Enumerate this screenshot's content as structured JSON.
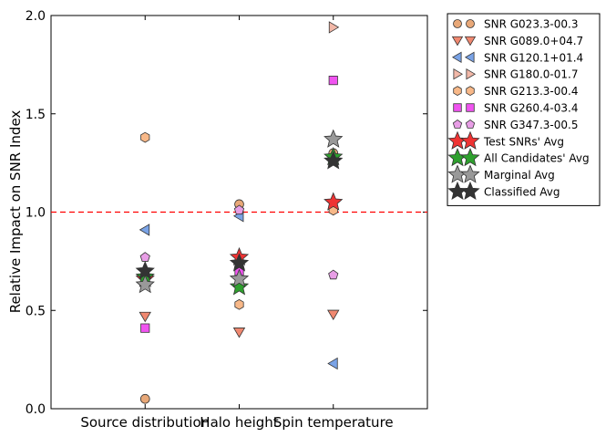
{
  "chart_data": {
    "type": "scatter",
    "title": "",
    "xlabel": "",
    "ylabel": "Relative Impact on SNR Index",
    "categories": [
      "Source distribution",
      "Halo height",
      "Spin temperature"
    ],
    "ylim": [
      0.0,
      2.0
    ],
    "yticks": [
      "0.0",
      "0.5",
      "1.0",
      "1.5",
      "2.0"
    ],
    "reference_line": {
      "y": 1.0,
      "color": "#ff0000",
      "style": "dashed"
    },
    "legend_position": "outside-right",
    "series": [
      {
        "name": "SNR G023.3-00.3",
        "marker": "circle",
        "color": "#e8a878",
        "values": [
          0.05,
          1.04,
          1.3
        ]
      },
      {
        "name": "SNR G089.0+04.7",
        "marker": "triangle-down",
        "color": "#f08870",
        "values": [
          0.47,
          0.39,
          0.48
        ]
      },
      {
        "name": "SNR G120.1+01.4",
        "marker": "triangle-left",
        "color": "#7aa3e6",
        "values": [
          0.91,
          0.98,
          0.23
        ]
      },
      {
        "name": "SNR G180.0-01.7",
        "marker": "triangle-right",
        "color": "#f2b8a8",
        "values": [
          0.66,
          0.71,
          1.94
        ]
      },
      {
        "name": "SNR G213.3-00.4",
        "marker": "hexagon",
        "color": "#f8b888",
        "values": [
          1.38,
          0.53,
          1.01
        ]
      },
      {
        "name": "SNR G260.4-03.4",
        "marker": "square",
        "color": "#f054f0",
        "values": [
          0.41,
          0.7,
          1.67
        ]
      },
      {
        "name": "SNR G347.3-00.5",
        "marker": "pentagon",
        "color": "#e89ee6",
        "values": [
          0.77,
          1.01,
          0.68
        ]
      },
      {
        "name": "Test SNRs' Avg",
        "marker": "star",
        "color": "#ee3333",
        "values": [
          0.66,
          0.77,
          1.05
        ]
      },
      {
        "name": "All Candidates' Avg",
        "marker": "star",
        "color": "#2ea02e",
        "values": [
          0.67,
          0.62,
          1.28
        ]
      },
      {
        "name": "Marginal Avg",
        "marker": "star",
        "color": "#999999",
        "values": [
          0.63,
          0.66,
          1.37
        ]
      },
      {
        "name": "Classified Avg",
        "marker": "star",
        "color": "#333333",
        "values": [
          0.7,
          0.74,
          1.26
        ]
      }
    ]
  }
}
